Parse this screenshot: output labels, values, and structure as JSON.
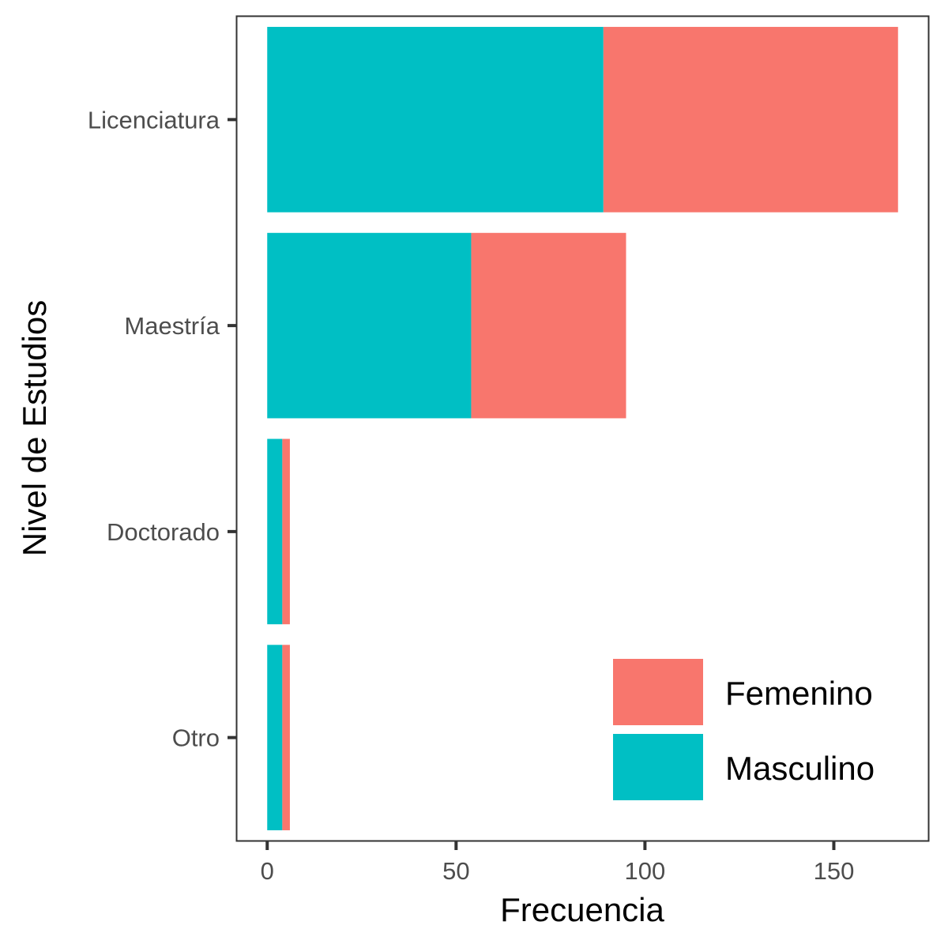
{
  "chart_data": {
    "type": "bar",
    "orientation": "horizontal",
    "stacked": true,
    "categories": [
      "Licenciatura",
      "Maestría",
      "Doctorado",
      "Otro"
    ],
    "series": [
      {
        "name": "Masculino",
        "values": [
          89,
          54,
          4,
          4
        ],
        "color": "#00BFC4"
      },
      {
        "name": "Femenino",
        "values": [
          78,
          41,
          2,
          2
        ],
        "color": "#F8766D"
      }
    ],
    "legend_order": [
      "Femenino",
      "Masculino"
    ],
    "xlabel": "Frecuencia",
    "ylabel": "Nivel de Estudios",
    "xlim": [
      -8,
      175
    ],
    "xticks": [
      0,
      50,
      100,
      150
    ],
    "legend_position": "bottom-right",
    "grid": false
  }
}
